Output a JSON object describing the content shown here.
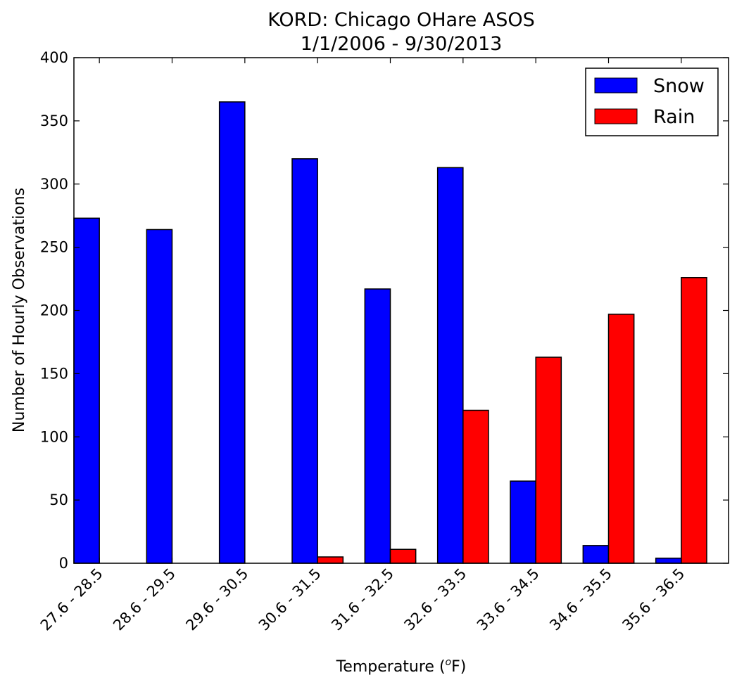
{
  "chart_data": {
    "type": "bar",
    "title": "KORD: Chicago OHare ASOS",
    "subtitle": "1/1/2006 - 9/30/2013",
    "xlabel": "Temperature (",
    "xlabel_sup": "o",
    "xlabel_suffix": "F)",
    "ylabel": "Number of Hourly Observations",
    "ylim": [
      0,
      400
    ],
    "yticks": [
      0,
      50,
      100,
      150,
      200,
      250,
      300,
      350,
      400
    ],
    "categories": [
      "27.6 - 28.5",
      "28.6 - 29.5",
      "29.6 - 30.5",
      "30.6 - 31.5",
      "31.6 - 32.5",
      "32.6 - 33.5",
      "33.6 - 34.5",
      "34.6 - 35.5",
      "35.6 - 36.5"
    ],
    "series": [
      {
        "name": "Snow",
        "color": "#0000ff",
        "values": [
          273,
          264,
          365,
          320,
          217,
          313,
          65,
          14,
          4
        ]
      },
      {
        "name": "Rain",
        "color": "#ff0000",
        "values": [
          0,
          0,
          0,
          5,
          11,
          121,
          163,
          197,
          226
        ]
      }
    ],
    "legend": "top-right",
    "grid": false
  }
}
